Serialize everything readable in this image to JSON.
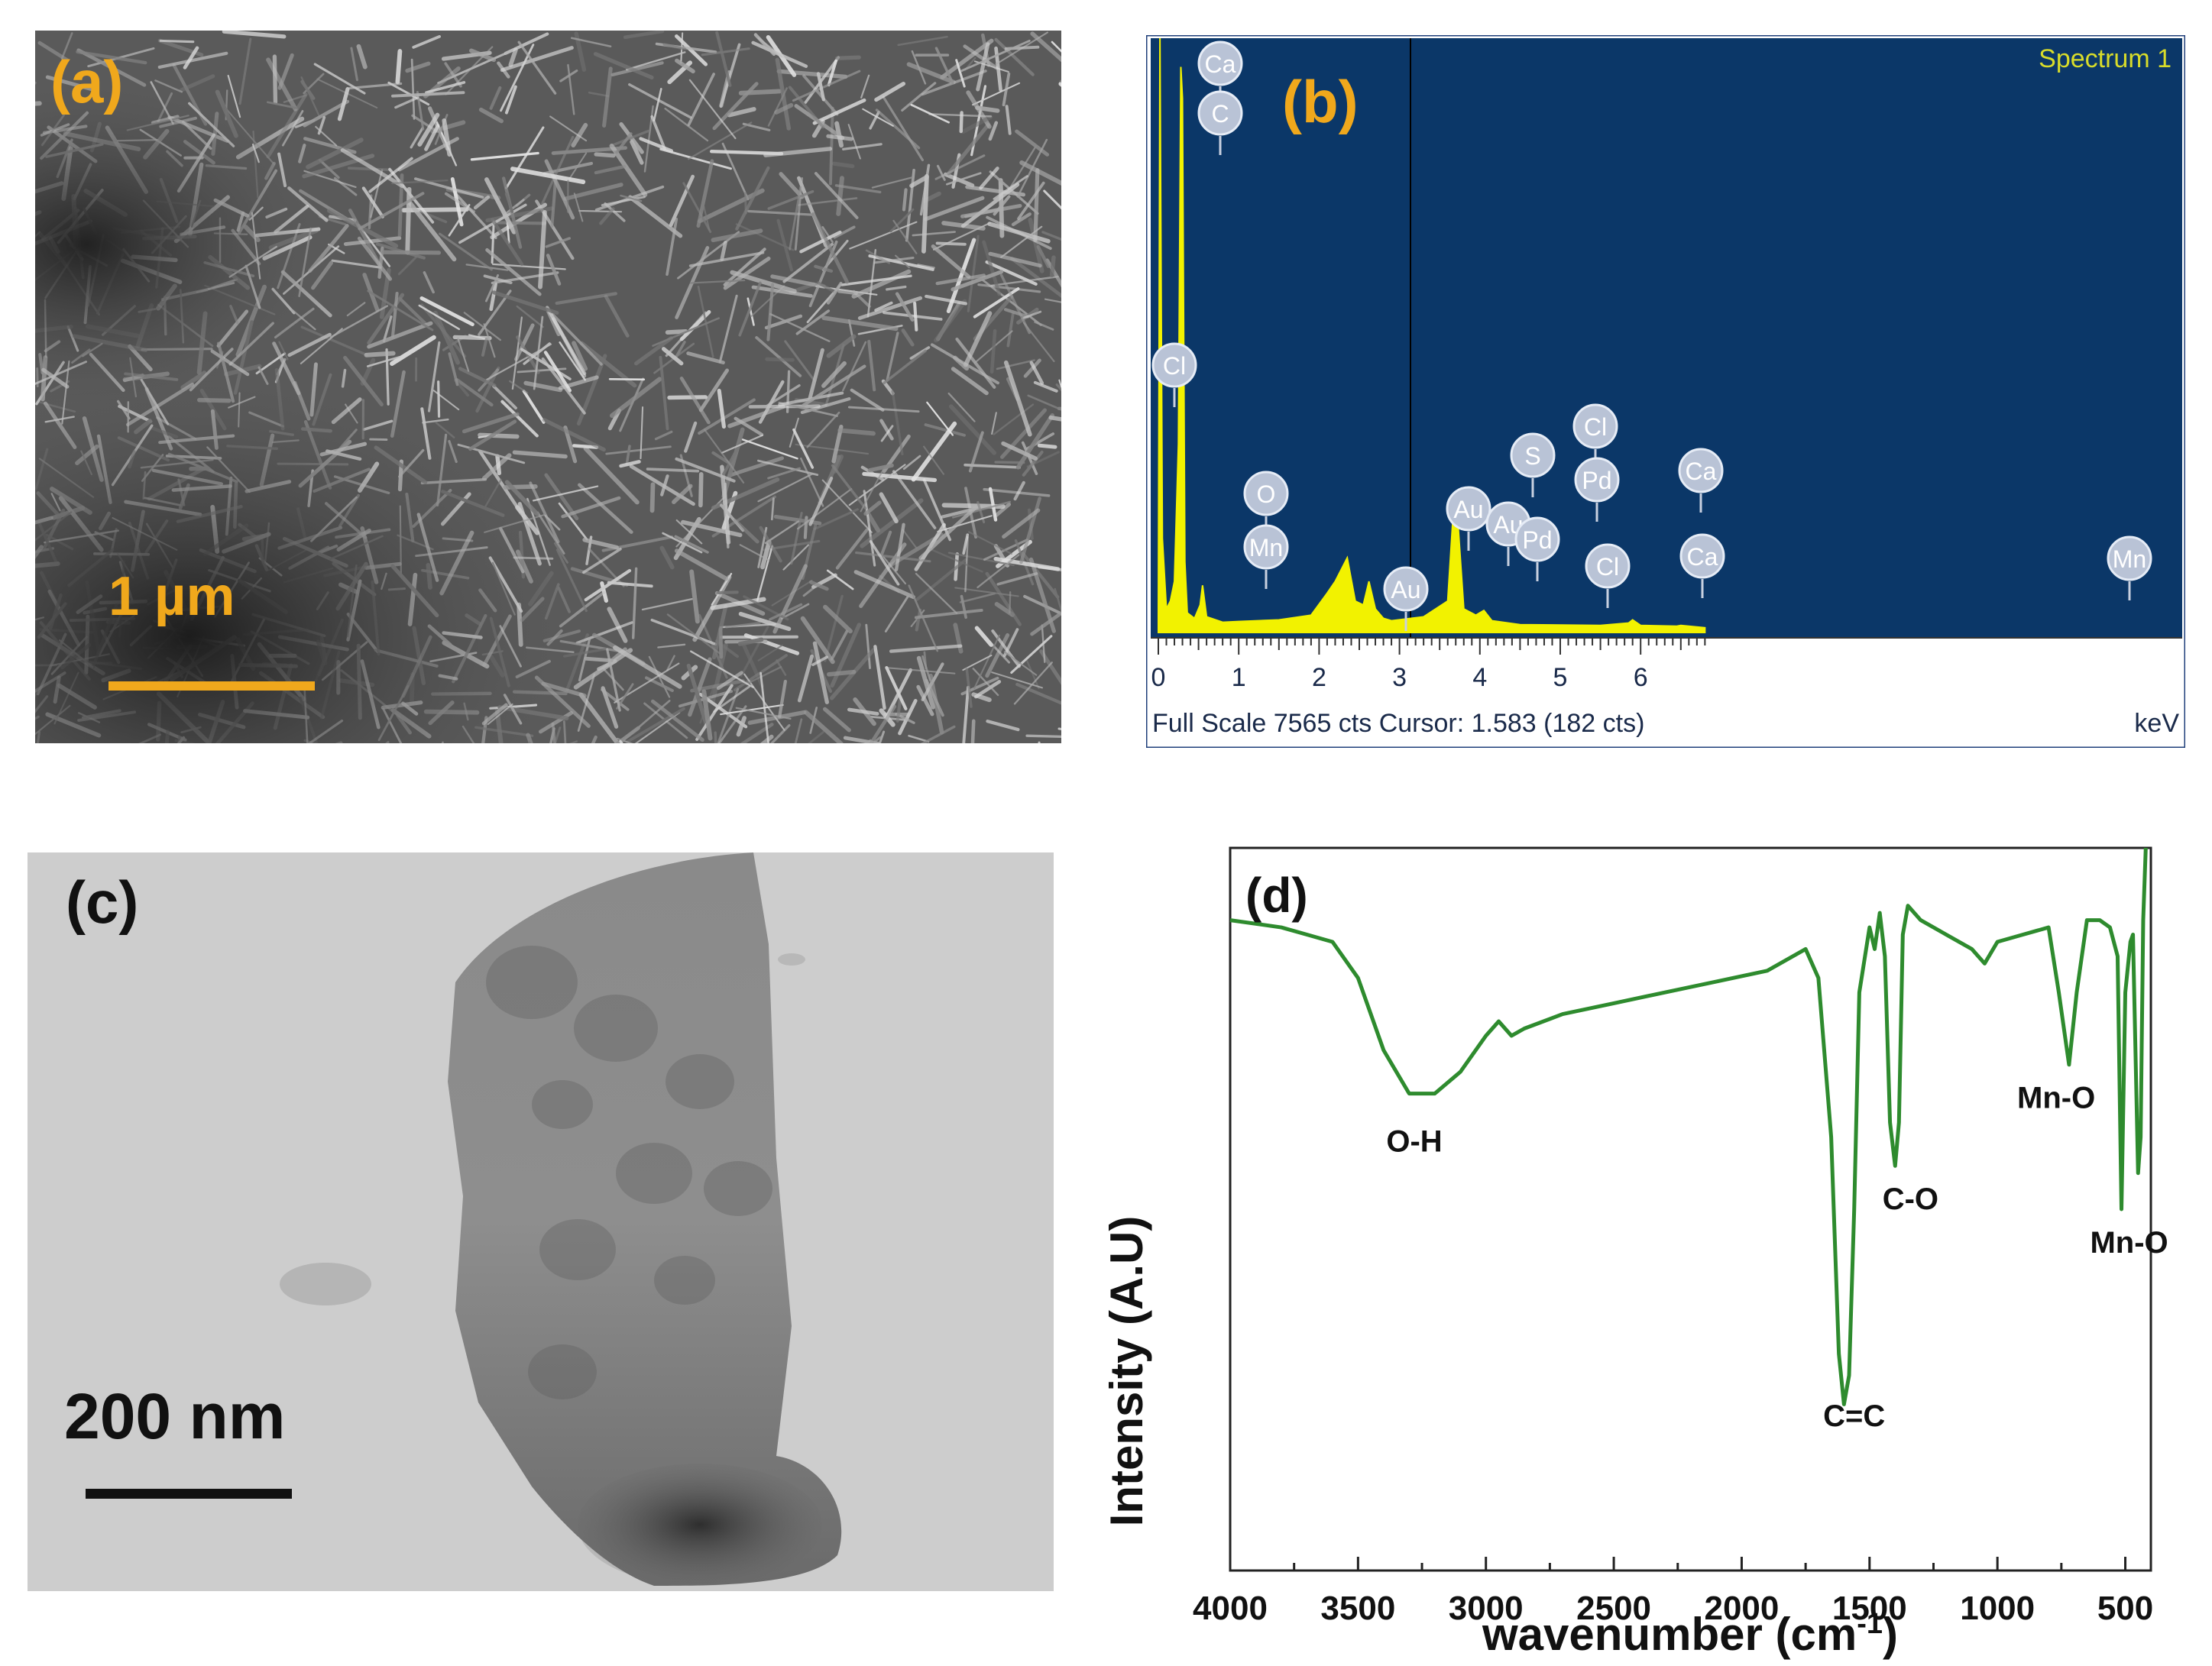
{
  "panels": {
    "a": {
      "label": "(a)",
      "scalebar": "1 µm"
    },
    "b": {
      "label": "(b)",
      "spectrum_name": "Spectrum 1",
      "footer": "Full Scale 7565 cts Cursor: 1.583  (182 cts)",
      "unit": "keV",
      "ticks": [
        "0",
        "1",
        "2",
        "3",
        "4",
        "5",
        "6"
      ]
    },
    "c": {
      "label": "(c)",
      "scalebar": "200 nm"
    },
    "d": {
      "label": "(d)"
    }
  },
  "colors": {
    "accent_orange": "#f0a81c",
    "eds_bg": "#0b3768",
    "eds_peak": "#f2f200",
    "ftir_line": "#2e8b2e"
  },
  "chart_data": [
    {
      "type": "area",
      "panel": "b",
      "title": "Spectrum 1",
      "xlabel": "keV",
      "xlim": [
        0,
        6.8
      ],
      "ylim": [
        0,
        7565
      ],
      "x": [
        0.0,
        0.02,
        0.05,
        0.1,
        0.15,
        0.2,
        0.25,
        0.28,
        0.3,
        0.33,
        0.36,
        0.45,
        0.52,
        0.55,
        0.6,
        0.8,
        1.0,
        1.5,
        1.9,
        2.1,
        2.2,
        2.3,
        2.35,
        2.45,
        2.55,
        2.62,
        2.7,
        2.8,
        2.9,
        3.3,
        3.6,
        3.68,
        3.72,
        3.8,
        3.95,
        4.05,
        4.15,
        4.5,
        5.5,
        5.85,
        5.9,
        6.0,
        6.45,
        6.5,
        6.8
      ],
      "y": [
        200,
        7565,
        1200,
        300,
        400,
        650,
        2400,
        7200,
        6800,
        900,
        250,
        180,
        350,
        600,
        200,
        130,
        140,
        160,
        220,
        500,
        650,
        850,
        950,
        400,
        350,
        650,
        300,
        180,
        150,
        200,
        400,
        1700,
        1500,
        300,
        220,
        280,
        150,
        100,
        90,
        120,
        160,
        90,
        80,
        90,
        60
      ],
      "annotations": [
        {
          "text": "Ca",
          "x": 0.29
        },
        {
          "text": "C",
          "x": 0.29
        },
        {
          "text": "Cl",
          "x": 0.2
        },
        {
          "text": "O",
          "x": 0.53
        },
        {
          "text": "Mn",
          "x": 0.56
        },
        {
          "text": "Au",
          "x": 1.66
        },
        {
          "text": "Au",
          "x": 2.12
        },
        {
          "text": "S",
          "x": 2.31
        },
        {
          "text": "Au",
          "x": 2.2
        },
        {
          "text": "Cl",
          "x": 2.62
        },
        {
          "text": "Pd",
          "x": 2.84
        },
        {
          "text": "Cl",
          "x": 2.82
        },
        {
          "text": "Pd",
          "x": 3.56
        },
        {
          "text": "Ca",
          "x": 3.69
        },
        {
          "text": "Ca",
          "x": 4.01
        },
        {
          "text": "Mn",
          "x": 5.9
        },
        {
          "text": "Mn",
          "x": 6.49
        }
      ]
    },
    {
      "type": "line",
      "panel": "d",
      "xlabel": "wavenumber (cm",
      "xlabel_sup": "-1",
      "xlabel_tail": ")",
      "ylabel": "Intensity (A.U)",
      "xlim": [
        4000,
        400
      ],
      "xticks": [
        4000,
        3500,
        3000,
        2500,
        2000,
        1500,
        1000,
        500
      ],
      "ylim": [
        0,
        100
      ],
      "x": [
        4000,
        3800,
        3700,
        3600,
        3500,
        3400,
        3300,
        3200,
        3100,
        3000,
        2950,
        2900,
        2850,
        2700,
        2500,
        2300,
        2100,
        1900,
        1750,
        1700,
        1650,
        1620,
        1600,
        1580,
        1560,
        1540,
        1500,
        1480,
        1460,
        1440,
        1420,
        1400,
        1385,
        1370,
        1350,
        1300,
        1200,
        1100,
        1050,
        1000,
        900,
        800,
        760,
        720,
        690,
        650,
        600,
        560,
        530,
        515,
        500,
        480,
        470,
        450,
        440,
        430,
        420
      ],
      "y": [
        90,
        89,
        88,
        87,
        82,
        72,
        66,
        66,
        69,
        74,
        76,
        74,
        75,
        77,
        78.5,
        80,
        81.5,
        83,
        86,
        82,
        60,
        30,
        23,
        27,
        50,
        80,
        89,
        86,
        91,
        85,
        62,
        56,
        62,
        88,
        92,
        90,
        88,
        86,
        84,
        87,
        88,
        89,
        80,
        70,
        80,
        90,
        90,
        89,
        85,
        50,
        80,
        87,
        88,
        55,
        60,
        90,
        100
      ],
      "annotations": [
        {
          "text": "O-H",
          "x": 3280,
          "y": 58
        },
        {
          "text": "C=C",
          "x": 1560,
          "y": 20
        },
        {
          "text": "C-O",
          "x": 1340,
          "y": 50
        },
        {
          "text": "Mn-O",
          "x": 770,
          "y": 64
        },
        {
          "text": "Mn-O",
          "x": 485,
          "y": 44
        }
      ]
    }
  ]
}
